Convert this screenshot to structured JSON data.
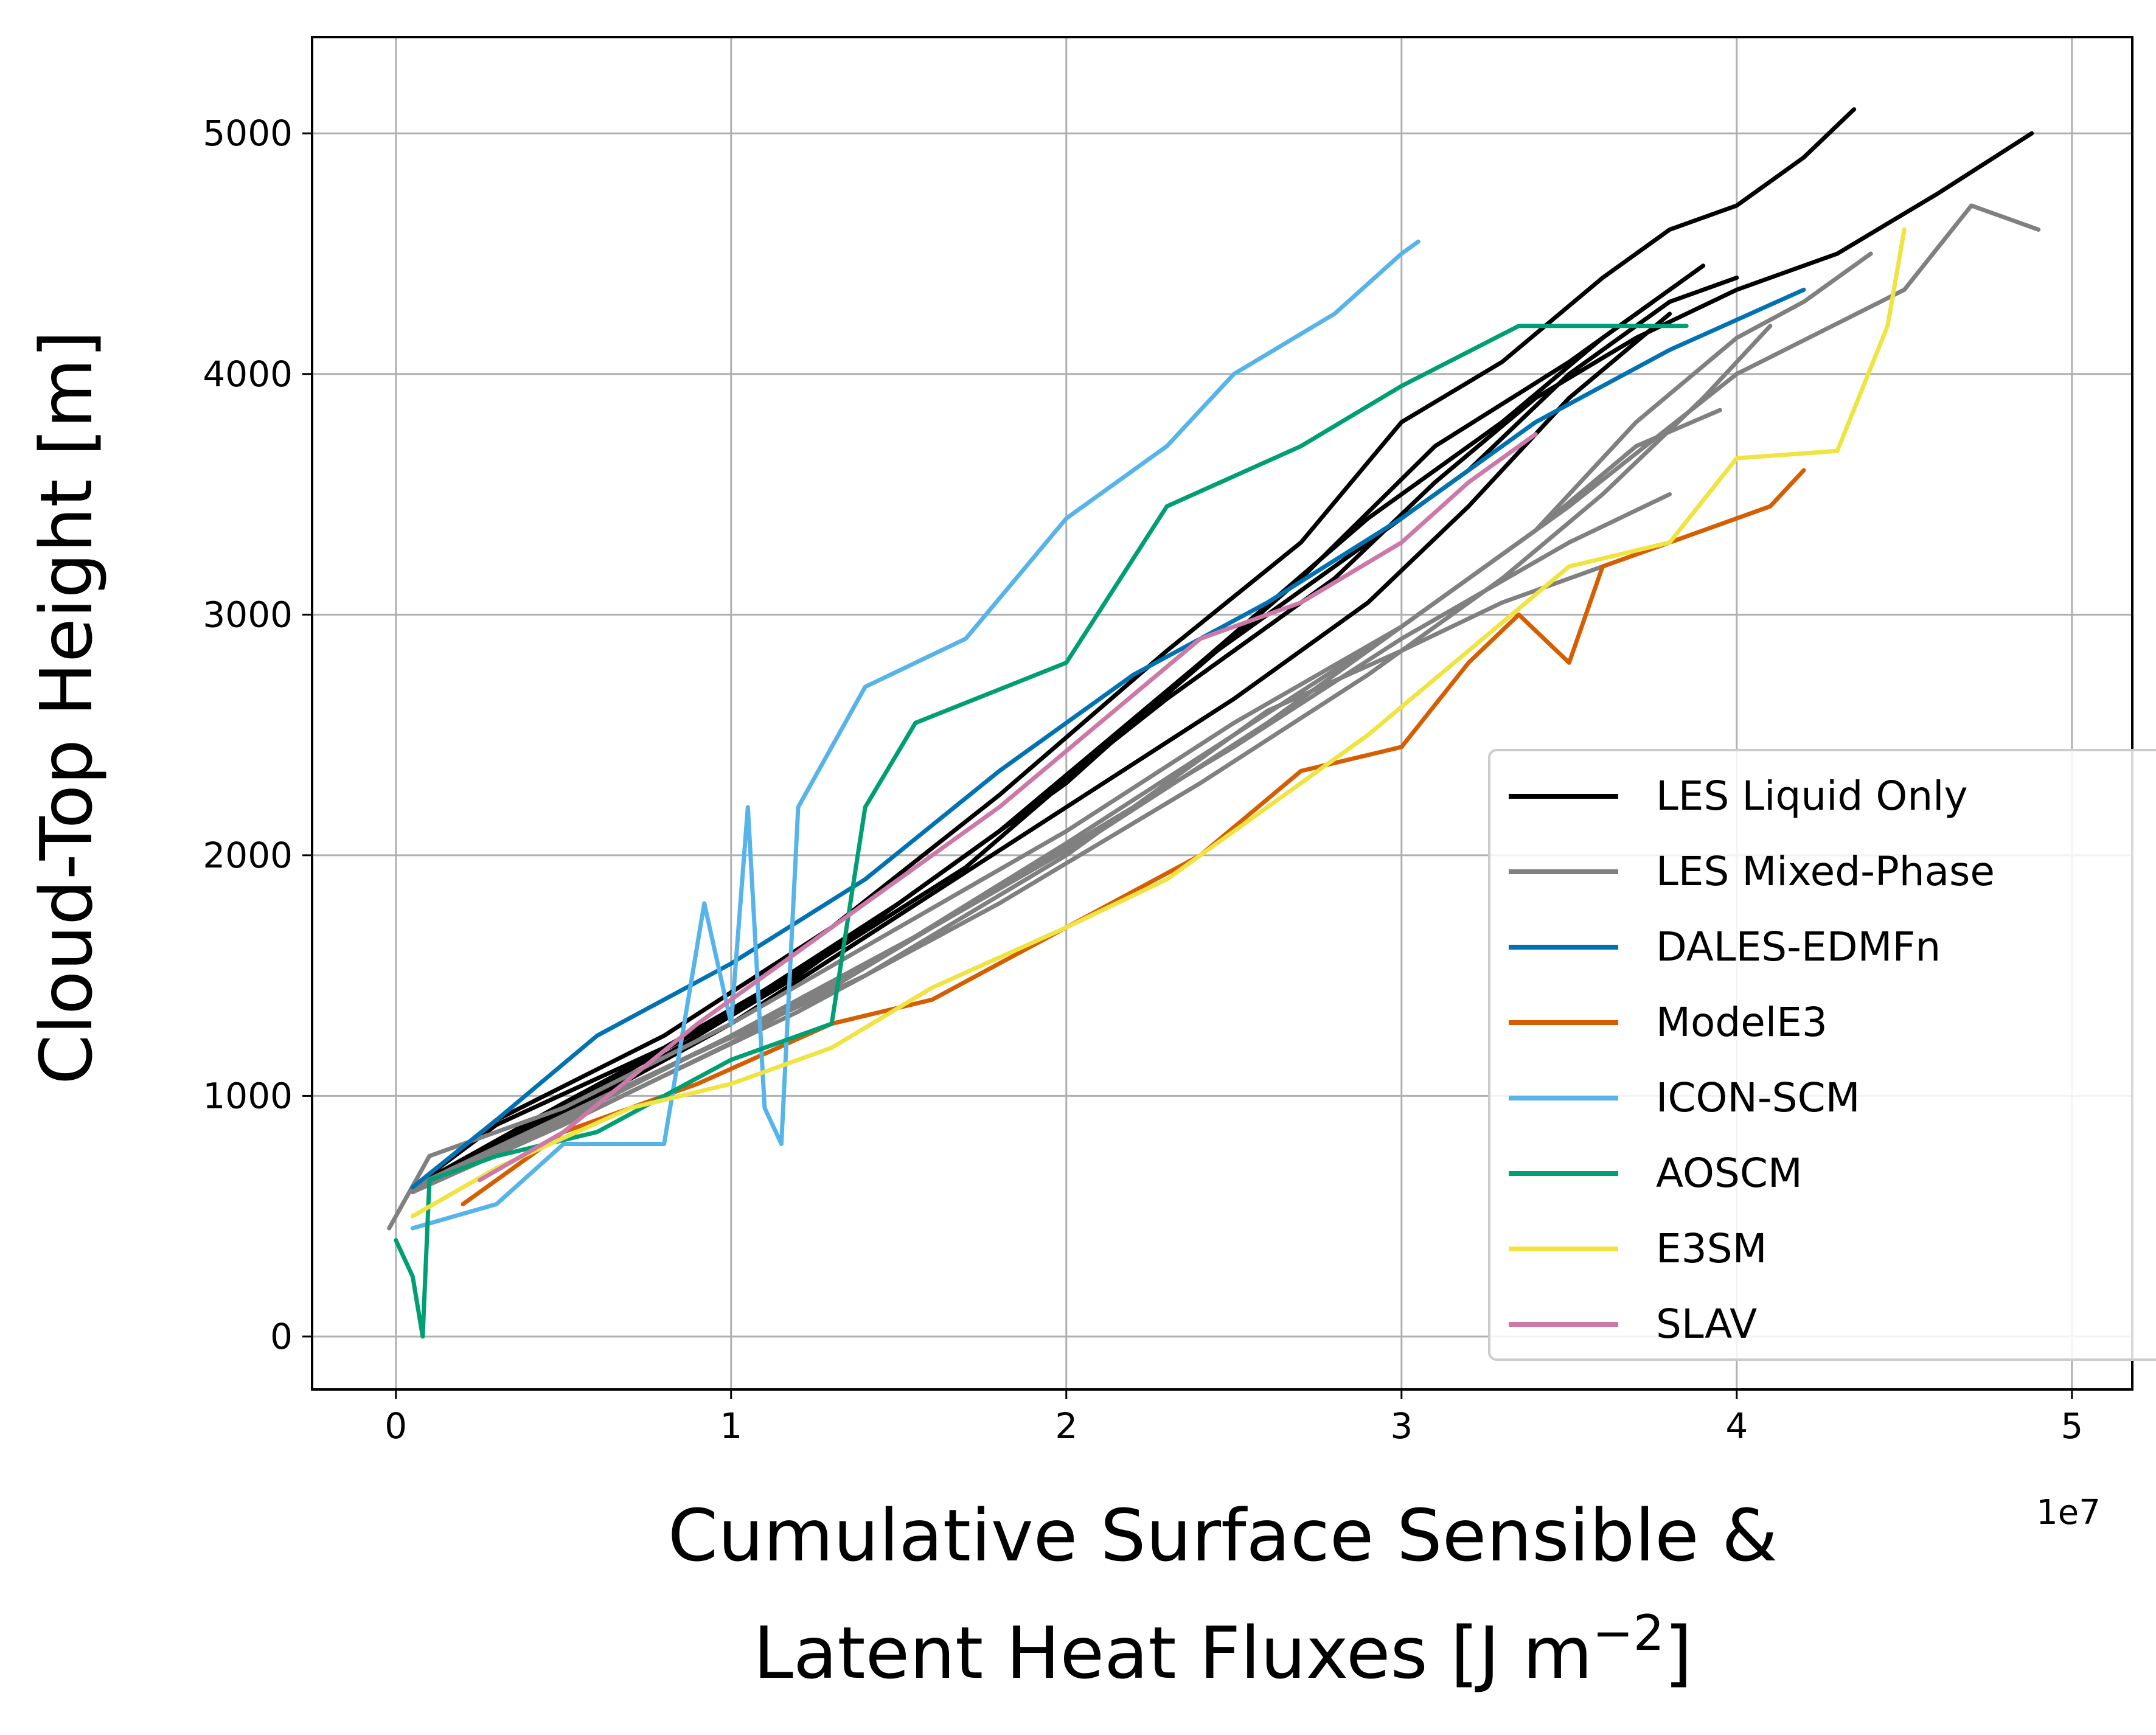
{
  "chart_data": {
    "type": "line",
    "title": "",
    "xlabel_line1": "Cumulative Surface Sensible &",
    "xlabel_line2_prefix": "Latent Heat Fluxes [J m",
    "xlabel_line2_sup": "−2",
    "xlabel_line2_suffix": "]",
    "ylabel": "Cloud-Top Height [m]",
    "x_offset_label": "1e7",
    "xlim": [
      -0.25,
      5.18
    ],
    "ylim": [
      -220,
      5400
    ],
    "xticks": [
      0,
      1,
      2,
      3,
      4,
      5
    ],
    "xtick_labels": [
      "0",
      "1",
      "2",
      "3",
      "4",
      "5"
    ],
    "yticks": [
      0,
      1000,
      2000,
      3000,
      4000,
      5000
    ],
    "ytick_labels": [
      "0",
      "1000",
      "2000",
      "3000",
      "4000",
      "5000"
    ],
    "grid": true,
    "legend_position": "lower-right",
    "x_units_scale": "1e7",
    "series": [
      {
        "name": "LES Liquid Only",
        "color": "#000000",
        "legend": true,
        "x": [
          0.05,
          0.3,
          0.8,
          1.3,
          1.8,
          2.3,
          2.7,
          3.0,
          3.3,
          3.6,
          3.8,
          4.0,
          4.2,
          4.35
        ],
        "y": [
          620,
          900,
          1250,
          1700,
          2250,
          2850,
          3300,
          3800,
          4050,
          4400,
          4600,
          4700,
          4900,
          5100
        ]
      },
      {
        "name": "",
        "color": "#000000",
        "legend": false,
        "x": [
          0.05,
          0.3,
          0.8,
          1.3,
          1.8,
          2.3,
          2.8,
          3.1,
          3.4,
          3.7,
          4.0,
          4.3,
          4.6,
          4.88
        ],
        "y": [
          620,
          880,
          1200,
          1600,
          2100,
          2650,
          3150,
          3550,
          3900,
          4150,
          4350,
          4500,
          4750,
          5000
        ]
      },
      {
        "name": "",
        "color": "#000000",
        "legend": false,
        "x": [
          0.05,
          0.5,
          1.0,
          1.5,
          2.0,
          2.4,
          2.8,
          3.2,
          3.5,
          3.8,
          4.0
        ],
        "y": [
          620,
          950,
          1350,
          1800,
          2300,
          2800,
          3200,
          3600,
          4000,
          4300,
          4400
        ]
      },
      {
        "name": "",
        "color": "#000000",
        "legend": false,
        "x": [
          0.05,
          0.5,
          1.0,
          1.5,
          2.0,
          2.5,
          2.9,
          3.2,
          3.5,
          3.8
        ],
        "y": [
          620,
          920,
          1300,
          1750,
          2200,
          2650,
          3050,
          3450,
          3900,
          4250
        ]
      },
      {
        "name": "",
        "color": "#000000",
        "legend": false,
        "x": [
          0.05,
          0.6,
          1.2,
          1.8,
          2.4,
          2.9,
          3.3,
          3.6,
          3.9
        ],
        "y": [
          620,
          1000,
          1500,
          2100,
          2800,
          3400,
          3800,
          4150,
          4450
        ]
      },
      {
        "name": "",
        "color": "#000000",
        "legend": false,
        "x": [
          0.05,
          0.5,
          1.1,
          1.7,
          2.2,
          2.7,
          3.1,
          3.5,
          3.75
        ],
        "y": [
          620,
          970,
          1420,
          1950,
          2550,
          3150,
          3700,
          4050,
          4300
        ]
      },
      {
        "name": "LES Mixed-Phase",
        "color": "#808080",
        "legend": true,
        "x": [
          -0.02,
          0.1,
          0.5,
          1.0,
          1.5,
          2.0,
          2.5,
          3.0,
          3.4,
          3.7,
          4.0,
          4.2,
          4.4
        ],
        "y": [
          450,
          750,
          950,
          1300,
          1700,
          2100,
          2550,
          2950,
          3350,
          3800,
          4150,
          4300,
          4500
        ]
      },
      {
        "name": "",
        "color": "#808080",
        "legend": false,
        "x": [
          0.05,
          0.6,
          1.2,
          1.8,
          2.4,
          2.9,
          3.3,
          3.6,
          3.9,
          4.1
        ],
        "y": [
          600,
          950,
          1350,
          1800,
          2300,
          2750,
          3150,
          3500,
          3900,
          4200
        ]
      },
      {
        "name": "",
        "color": "#808080",
        "legend": false,
        "x": [
          0.05,
          0.5,
          1.0,
          1.6,
          2.1,
          2.6,
          3.0,
          3.4,
          3.7,
          3.95
        ],
        "y": [
          600,
          900,
          1250,
          1700,
          2100,
          2550,
          2950,
          3350,
          3700,
          3850
        ]
      },
      {
        "name": "",
        "color": "#808080",
        "legend": false,
        "x": [
          0.05,
          0.6,
          1.3,
          1.9,
          2.5,
          3.0,
          3.5,
          3.8
        ],
        "y": [
          600,
          980,
          1450,
          1950,
          2450,
          2900,
          3300,
          3500
        ]
      },
      {
        "name": "",
        "color": "#808080",
        "legend": false,
        "x": [
          0.05,
          0.7,
          1.4,
          2.0,
          2.6,
          3.0,
          3.3,
          3.6
        ],
        "y": [
          620,
          1050,
          1500,
          2000,
          2600,
          2850,
          3050,
          3200
        ]
      },
      {
        "name": "",
        "color": "#808080",
        "legend": false,
        "x": [
          0.05,
          0.5,
          1.0,
          1.5,
          2.0,
          2.5,
          3.0,
          3.5,
          4.0,
          4.5,
          4.7,
          4.9
        ],
        "y": [
          600,
          880,
          1220,
          1620,
          2050,
          2500,
          2950,
          3450,
          4000,
          4350,
          4700,
          4600
        ]
      },
      {
        "name": "DALES-EDMFn",
        "color": "#0072b2",
        "legend": true,
        "x": [
          0.05,
          0.3,
          0.6,
          1.0,
          1.4,
          1.8,
          2.2,
          2.6,
          3.0,
          3.4,
          3.8,
          4.2
        ],
        "y": [
          620,
          900,
          1250,
          1550,
          1900,
          2350,
          2750,
          3050,
          3400,
          3800,
          4100,
          4350
        ]
      },
      {
        "name": "ModelE3",
        "color": "#d55e00",
        "legend": true,
        "x": [
          0.2,
          0.5,
          0.9,
          1.3,
          1.6,
          2.0,
          2.4,
          2.7,
          3.0,
          3.2,
          3.35,
          3.5,
          3.6,
          3.9,
          4.1,
          4.2
        ],
        "y": [
          550,
          850,
          1050,
          1300,
          1400,
          1700,
          2000,
          2350,
          2450,
          2800,
          3000,
          2800,
          3200,
          3350,
          3450,
          3600
        ]
      },
      {
        "name": "ICON-SCM",
        "color": "#56b4e9",
        "legend": true,
        "x": [
          0.05,
          0.3,
          0.5,
          0.8,
          0.92,
          1.0,
          1.05,
          1.1,
          1.15,
          1.2,
          1.4,
          1.7,
          2.0,
          2.3,
          2.5,
          2.8,
          3.0,
          3.05
        ],
        "y": [
          450,
          550,
          800,
          800,
          1800,
          1300,
          2200,
          950,
          800,
          2200,
          2700,
          2900,
          3400,
          3700,
          4000,
          4250,
          4500,
          4550
        ]
      },
      {
        "name": "AOSCM",
        "color": "#009e73",
        "legend": true,
        "x": [
          0.0,
          0.05,
          0.08,
          0.1,
          0.3,
          0.6,
          1.0,
          1.3,
          1.4,
          1.55,
          2.0,
          2.3,
          2.7,
          3.0,
          3.35,
          3.85
        ],
        "y": [
          400,
          250,
          0,
          650,
          750,
          850,
          1150,
          1300,
          2200,
          2550,
          2800,
          3450,
          3700,
          3950,
          4200,
          4200
        ]
      },
      {
        "name": "E3SM",
        "color": "#f0e442",
        "legend": true,
        "x": [
          0.05,
          0.3,
          0.7,
          1.0,
          1.3,
          1.6,
          2.0,
          2.3,
          2.6,
          2.9,
          3.2,
          3.5,
          3.8,
          4.0,
          4.3,
          4.45,
          4.5
        ],
        "y": [
          500,
          700,
          950,
          1050,
          1200,
          1450,
          1700,
          1900,
          2200,
          2500,
          2850,
          3200,
          3300,
          3650,
          3680,
          4200,
          4600
        ]
      },
      {
        "name": "SLAV",
        "color": "#cc79a7",
        "legend": true,
        "x": [
          0.25,
          0.5,
          0.9,
          1.2,
          1.5,
          1.8,
          2.1,
          2.4,
          2.7,
          3.0,
          3.2,
          3.4
        ],
        "y": [
          650,
          850,
          1300,
          1600,
          1900,
          2200,
          2550,
          2900,
          3050,
          3300,
          3550,
          3750
        ]
      }
    ]
  }
}
